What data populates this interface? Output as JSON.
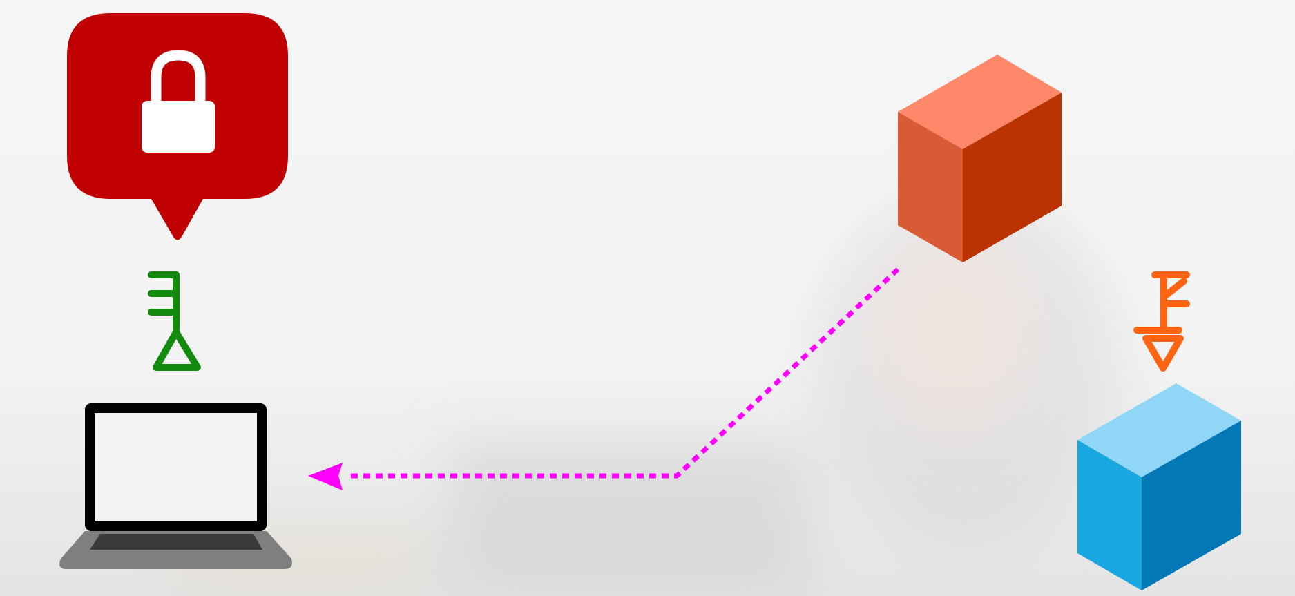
{
  "diagram": {
    "nodes": [
      {
        "name": "lock-bubble",
        "icon": "padlock-icon",
        "color": "#c00000"
      },
      {
        "name": "green-key",
        "icon": "key-icon",
        "color": "#138a0d"
      },
      {
        "name": "laptop",
        "icon": "laptop-icon",
        "color": "#000000"
      },
      {
        "name": "orange-cube",
        "icon": "cube-icon",
        "color": "#d95b35"
      },
      {
        "name": "orange-key",
        "icon": "key-icon",
        "color": "#ff6412"
      },
      {
        "name": "blue-cube",
        "icon": "cube-icon",
        "color": "#1aa6df"
      }
    ],
    "edges": [
      {
        "from": "orange-cube",
        "to": "laptop",
        "style": "dotted",
        "color": "#ff00ff"
      }
    ]
  }
}
